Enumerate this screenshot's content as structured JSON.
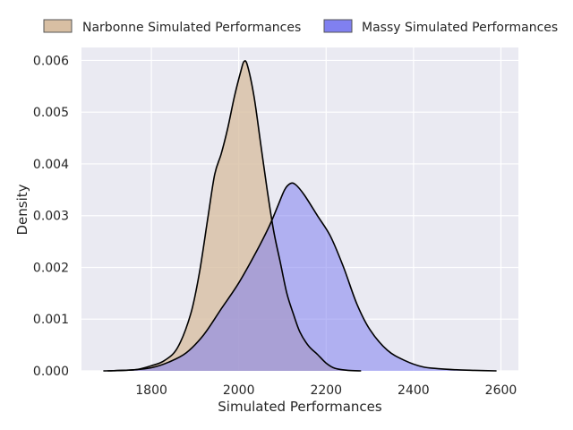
{
  "chart_data": {
    "type": "area",
    "xlabel": "Simulated Performances",
    "ylabel": "Density",
    "xlim": [
      1640,
      2640
    ],
    "ylim": [
      0,
      0.00625
    ],
    "x_ticks": [
      1800,
      2000,
      2200,
      2400,
      2600
    ],
    "y_ticks": [
      0.0,
      0.001,
      0.002,
      0.003,
      0.004,
      0.005,
      0.006
    ],
    "x_tick_labels": [
      "1800",
      "2000",
      "2200",
      "2400",
      "2600"
    ],
    "y_tick_labels": [
      "0.000",
      "0.001",
      "0.002",
      "0.003",
      "0.004",
      "0.005",
      "0.006"
    ],
    "grid": true,
    "legend_position": "top, outside plot, horizontal",
    "series": [
      {
        "name": "Narbonne Simulated Performances",
        "color": "#d8bfa3",
        "points": [
          [
            1690,
            0
          ],
          [
            1760,
            2e-05
          ],
          [
            1800,
            0.0001
          ],
          [
            1830,
            0.0002
          ],
          [
            1860,
            0.00045
          ],
          [
            1890,
            0.0011
          ],
          [
            1910,
            0.0019
          ],
          [
            1930,
            0.003
          ],
          [
            1945,
            0.0038
          ],
          [
            1960,
            0.0042
          ],
          [
            1975,
            0.0047
          ],
          [
            1990,
            0.0053
          ],
          [
            2005,
            0.0058
          ],
          [
            2012,
            0.00598
          ],
          [
            2020,
            0.0059
          ],
          [
            2035,
            0.0053
          ],
          [
            2050,
            0.0044
          ],
          [
            2065,
            0.0035
          ],
          [
            2080,
            0.0027
          ],
          [
            2095,
            0.0021
          ],
          [
            2110,
            0.0015
          ],
          [
            2125,
            0.0011
          ],
          [
            2140,
            0.00075
          ],
          [
            2160,
            0.00048
          ],
          [
            2180,
            0.00032
          ],
          [
            2200,
            0.00015
          ],
          [
            2220,
            5e-05
          ],
          [
            2250,
            1e-05
          ],
          [
            2280,
            0
          ]
        ]
      },
      {
        "name": "Massy Simulated Performances",
        "color": "#8080f0",
        "points": [
          [
            1700,
            0
          ],
          [
            1760,
            2e-05
          ],
          [
            1800,
            6e-05
          ],
          [
            1840,
            0.00017
          ],
          [
            1880,
            0.00035
          ],
          [
            1920,
            0.0007
          ],
          [
            1960,
            0.0012
          ],
          [
            2000,
            0.0017
          ],
          [
            2040,
            0.0023
          ],
          [
            2070,
            0.0028
          ],
          [
            2090,
            0.0032
          ],
          [
            2105,
            0.0035
          ],
          [
            2118,
            0.00362
          ],
          [
            2130,
            0.0036
          ],
          [
            2150,
            0.0034
          ],
          [
            2180,
            0.003
          ],
          [
            2210,
            0.0026
          ],
          [
            2240,
            0.002
          ],
          [
            2270,
            0.0013
          ],
          [
            2300,
            0.0008
          ],
          [
            2340,
            0.0004
          ],
          [
            2380,
            0.0002
          ],
          [
            2420,
            8e-05
          ],
          [
            2460,
            4e-05
          ],
          [
            2500,
            2e-05
          ],
          [
            2540,
            1e-05
          ],
          [
            2590,
            0
          ]
        ]
      }
    ]
  }
}
